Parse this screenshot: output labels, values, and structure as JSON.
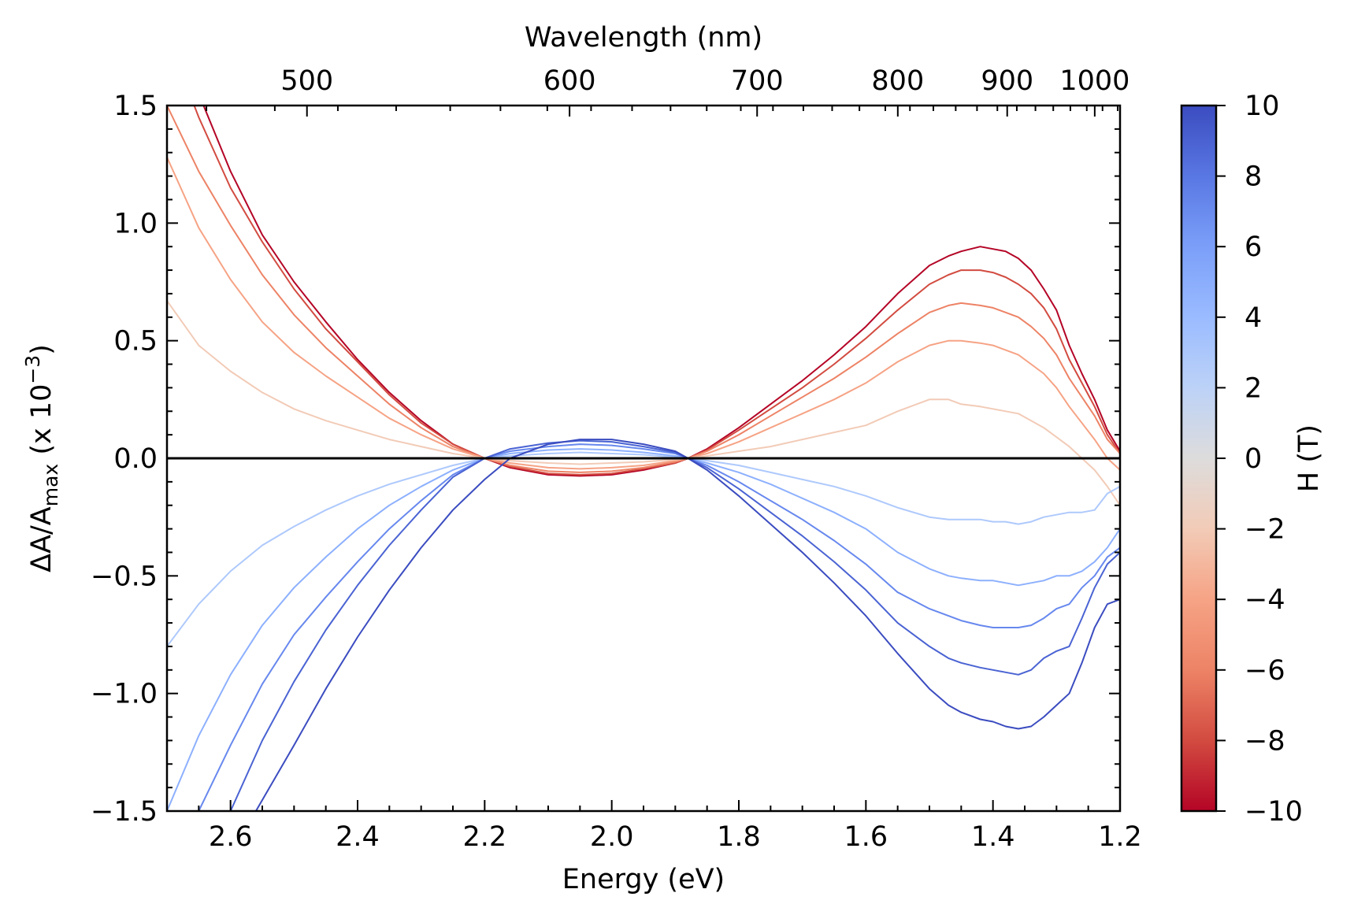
{
  "chart_data": {
    "type": "line",
    "xlabel": "Energy (eV)",
    "ylabel": {
      "base": "ΔA/A",
      "sub": "max",
      "suffix": " (x 10",
      "sup": "−3",
      "close": ")"
    },
    "top_xlabel": "Wavelength (nm)",
    "xlim": [
      2.7,
      1.2
    ],
    "ylim": [
      -1.5,
      1.5
    ],
    "x_ticks": [
      "2.6",
      "2.4",
      "2.2",
      "2.0",
      "1.8",
      "1.6",
      "1.4",
      "1.2"
    ],
    "y_ticks": [
      "−1.5",
      "−1.0",
      "−0.5",
      "0.0",
      "0.5",
      "1.0",
      "1.5"
    ],
    "top_ticks": [
      "500",
      "600",
      "700",
      "800",
      "900",
      "1000"
    ],
    "top_tick_values_nm": [
      500,
      600,
      700,
      800,
      900,
      1000
    ],
    "colorbar": {
      "label": "H (T)",
      "range": [
        -10,
        10
      ],
      "ticks": [
        "−10",
        "−8",
        "−6",
        "−4",
        "−2",
        "0",
        "2",
        "4",
        "6",
        "8",
        "10"
      ],
      "colormap": "coolwarm"
    },
    "zero_line": true,
    "series": [
      {
        "field": -10,
        "color": "#b40426",
        "x": [
          2.7,
          2.65,
          2.6,
          2.55,
          2.5,
          2.45,
          2.4,
          2.35,
          2.3,
          2.25,
          2.2,
          2.16,
          2.1,
          2.05,
          2.0,
          1.95,
          1.9,
          1.88,
          1.85,
          1.8,
          1.75,
          1.7,
          1.65,
          1.6,
          1.55,
          1.5,
          1.47,
          1.45,
          1.42,
          1.4,
          1.38,
          1.36,
          1.34,
          1.32,
          1.3,
          1.28,
          1.26,
          1.24,
          1.22,
          1.2
        ],
        "y": [
          1.9,
          1.55,
          1.22,
          0.95,
          0.75,
          0.58,
          0.42,
          0.28,
          0.16,
          0.06,
          0.0,
          -0.04,
          -0.07,
          -0.075,
          -0.07,
          -0.05,
          -0.02,
          0.0,
          0.04,
          0.13,
          0.23,
          0.33,
          0.44,
          0.56,
          0.7,
          0.82,
          0.86,
          0.88,
          0.9,
          0.89,
          0.88,
          0.85,
          0.8,
          0.72,
          0.63,
          0.48,
          0.36,
          0.25,
          0.12,
          0.03
        ]
      },
      {
        "field": -8,
        "color": "#d24b40",
        "x": [
          2.7,
          2.65,
          2.6,
          2.55,
          2.5,
          2.45,
          2.4,
          2.35,
          2.3,
          2.25,
          2.2,
          2.16,
          2.1,
          2.05,
          2.0,
          1.95,
          1.9,
          1.88,
          1.85,
          1.8,
          1.75,
          1.7,
          1.65,
          1.6,
          1.55,
          1.5,
          1.47,
          1.45,
          1.42,
          1.4,
          1.38,
          1.36,
          1.34,
          1.32,
          1.3,
          1.28,
          1.26,
          1.24,
          1.22,
          1.2
        ],
        "y": [
          1.8,
          1.45,
          1.15,
          0.92,
          0.72,
          0.55,
          0.41,
          0.27,
          0.15,
          0.06,
          0.0,
          -0.035,
          -0.065,
          -0.07,
          -0.065,
          -0.045,
          -0.02,
          0.0,
          0.035,
          0.12,
          0.21,
          0.3,
          0.4,
          0.51,
          0.63,
          0.74,
          0.78,
          0.8,
          0.8,
          0.79,
          0.77,
          0.74,
          0.7,
          0.64,
          0.55,
          0.42,
          0.32,
          0.22,
          0.1,
          0.02
        ]
      },
      {
        "field": -6,
        "color": "#ed8366",
        "x": [
          2.7,
          2.65,
          2.6,
          2.55,
          2.5,
          2.45,
          2.4,
          2.35,
          2.3,
          2.25,
          2.2,
          2.16,
          2.1,
          2.05,
          2.0,
          1.95,
          1.9,
          1.88,
          1.85,
          1.8,
          1.75,
          1.7,
          1.65,
          1.6,
          1.55,
          1.5,
          1.47,
          1.45,
          1.42,
          1.4,
          1.38,
          1.36,
          1.34,
          1.32,
          1.3,
          1.28,
          1.26,
          1.24,
          1.22,
          1.2
        ],
        "y": [
          1.5,
          1.22,
          0.99,
          0.78,
          0.61,
          0.47,
          0.35,
          0.23,
          0.13,
          0.05,
          0.0,
          -0.03,
          -0.055,
          -0.06,
          -0.055,
          -0.04,
          -0.015,
          0.0,
          0.03,
          0.1,
          0.18,
          0.26,
          0.34,
          0.43,
          0.53,
          0.62,
          0.65,
          0.66,
          0.65,
          0.64,
          0.62,
          0.6,
          0.56,
          0.51,
          0.44,
          0.34,
          0.26,
          0.18,
          0.08,
          0.02
        ]
      },
      {
        "field": -4,
        "color": "#f6a385",
        "x": [
          2.7,
          2.65,
          2.6,
          2.55,
          2.5,
          2.45,
          2.4,
          2.35,
          2.3,
          2.25,
          2.2,
          2.16,
          2.1,
          2.05,
          2.0,
          1.95,
          1.9,
          1.88,
          1.85,
          1.8,
          1.75,
          1.7,
          1.65,
          1.6,
          1.55,
          1.5,
          1.47,
          1.45,
          1.42,
          1.4,
          1.38,
          1.36,
          1.34,
          1.32,
          1.3,
          1.28,
          1.26,
          1.24,
          1.22,
          1.2
        ],
        "y": [
          1.28,
          0.98,
          0.76,
          0.58,
          0.45,
          0.35,
          0.26,
          0.17,
          0.1,
          0.04,
          0.0,
          -0.02,
          -0.04,
          -0.045,
          -0.04,
          -0.03,
          -0.01,
          0.0,
          0.02,
          0.07,
          0.13,
          0.19,
          0.25,
          0.32,
          0.41,
          0.48,
          0.5,
          0.5,
          0.49,
          0.48,
          0.46,
          0.44,
          0.4,
          0.36,
          0.3,
          0.22,
          0.15,
          0.08,
          0.0,
          -0.05
        ]
      },
      {
        "field": -2,
        "color": "#f2cbb7",
        "x": [
          2.7,
          2.65,
          2.6,
          2.55,
          2.5,
          2.45,
          2.4,
          2.35,
          2.3,
          2.25,
          2.2,
          2.16,
          2.1,
          2.05,
          2.0,
          1.95,
          1.9,
          1.88,
          1.85,
          1.8,
          1.75,
          1.7,
          1.65,
          1.6,
          1.55,
          1.5,
          1.47,
          1.45,
          1.42,
          1.4,
          1.38,
          1.36,
          1.34,
          1.32,
          1.3,
          1.28,
          1.26,
          1.24,
          1.22,
          1.2
        ],
        "y": [
          0.67,
          0.48,
          0.37,
          0.28,
          0.21,
          0.16,
          0.12,
          0.08,
          0.05,
          0.02,
          0.0,
          -0.01,
          -0.02,
          -0.025,
          -0.02,
          -0.015,
          -0.005,
          0.0,
          0.01,
          0.03,
          0.05,
          0.08,
          0.11,
          0.14,
          0.2,
          0.25,
          0.25,
          0.23,
          0.22,
          0.21,
          0.2,
          0.19,
          0.16,
          0.13,
          0.09,
          0.05,
          0.0,
          -0.05,
          -0.12,
          -0.2
        ]
      },
      {
        "field": 2,
        "color": "#aec9fc",
        "x": [
          2.7,
          2.65,
          2.6,
          2.55,
          2.5,
          2.45,
          2.4,
          2.35,
          2.3,
          2.25,
          2.2,
          2.16,
          2.1,
          2.05,
          2.0,
          1.95,
          1.9,
          1.88,
          1.85,
          1.8,
          1.75,
          1.7,
          1.65,
          1.6,
          1.55,
          1.5,
          1.47,
          1.45,
          1.42,
          1.4,
          1.38,
          1.36,
          1.34,
          1.32,
          1.3,
          1.28,
          1.26,
          1.24,
          1.22,
          1.2
        ],
        "y": [
          -0.8,
          -0.62,
          -0.48,
          -0.37,
          -0.29,
          -0.22,
          -0.16,
          -0.11,
          -0.07,
          -0.03,
          0.0,
          0.01,
          0.02,
          0.025,
          0.02,
          0.015,
          0.005,
          0.0,
          -0.01,
          -0.03,
          -0.06,
          -0.09,
          -0.12,
          -0.16,
          -0.21,
          -0.25,
          -0.26,
          -0.26,
          -0.26,
          -0.27,
          -0.27,
          -0.28,
          -0.27,
          -0.25,
          -0.24,
          -0.23,
          -0.23,
          -0.22,
          -0.15,
          -0.12
        ]
      },
      {
        "field": 4,
        "color": "#8db0fe",
        "x": [
          2.7,
          2.65,
          2.6,
          2.55,
          2.5,
          2.45,
          2.4,
          2.35,
          2.3,
          2.25,
          2.2,
          2.16,
          2.1,
          2.05,
          2.0,
          1.95,
          1.9,
          1.88,
          1.85,
          1.8,
          1.75,
          1.7,
          1.65,
          1.6,
          1.55,
          1.5,
          1.47,
          1.45,
          1.42,
          1.4,
          1.38,
          1.36,
          1.34,
          1.32,
          1.3,
          1.28,
          1.26,
          1.24,
          1.22,
          1.2
        ],
        "y": [
          -1.5,
          -1.18,
          -0.92,
          -0.71,
          -0.55,
          -0.42,
          -0.3,
          -0.2,
          -0.12,
          -0.05,
          0.0,
          0.02,
          0.035,
          0.04,
          0.035,
          0.025,
          0.01,
          0.0,
          -0.02,
          -0.06,
          -0.11,
          -0.17,
          -0.23,
          -0.3,
          -0.4,
          -0.47,
          -0.5,
          -0.51,
          -0.52,
          -0.52,
          -0.53,
          -0.54,
          -0.53,
          -0.52,
          -0.5,
          -0.5,
          -0.48,
          -0.44,
          -0.38,
          -0.3
        ]
      },
      {
        "field": 6,
        "color": "#6788ee",
        "x": [
          2.65,
          2.6,
          2.55,
          2.5,
          2.45,
          2.4,
          2.35,
          2.3,
          2.25,
          2.2,
          2.16,
          2.1,
          2.05,
          2.0,
          1.95,
          1.9,
          1.88,
          1.85,
          1.8,
          1.75,
          1.7,
          1.65,
          1.6,
          1.55,
          1.5,
          1.47,
          1.45,
          1.42,
          1.4,
          1.38,
          1.36,
          1.34,
          1.32,
          1.3,
          1.28,
          1.26,
          1.24,
          1.22,
          1.2
        ],
        "y": [
          -1.5,
          -1.22,
          -0.96,
          -0.75,
          -0.59,
          -0.44,
          -0.3,
          -0.18,
          -0.07,
          0.0,
          0.03,
          0.05,
          0.06,
          0.055,
          0.04,
          0.02,
          0.0,
          -0.03,
          -0.1,
          -0.18,
          -0.26,
          -0.35,
          -0.45,
          -0.57,
          -0.64,
          -0.67,
          -0.69,
          -0.71,
          -0.72,
          -0.72,
          -0.72,
          -0.71,
          -0.68,
          -0.64,
          -0.62,
          -0.55,
          -0.5,
          -0.42,
          -0.38
        ]
      },
      {
        "field": 8,
        "color": "#4a63d3",
        "x": [
          2.6,
          2.55,
          2.5,
          2.45,
          2.4,
          2.35,
          2.3,
          2.25,
          2.2,
          2.16,
          2.1,
          2.05,
          2.0,
          1.95,
          1.9,
          1.88,
          1.85,
          1.8,
          1.75,
          1.7,
          1.65,
          1.6,
          1.55,
          1.5,
          1.47,
          1.45,
          1.42,
          1.4,
          1.38,
          1.36,
          1.34,
          1.32,
          1.3,
          1.28,
          1.26,
          1.24,
          1.22,
          1.2
        ],
        "y": [
          -1.5,
          -1.2,
          -0.95,
          -0.73,
          -0.54,
          -0.37,
          -0.22,
          -0.08,
          0.0,
          0.04,
          0.065,
          0.075,
          0.07,
          0.05,
          0.025,
          0.0,
          -0.04,
          -0.13,
          -0.23,
          -0.33,
          -0.44,
          -0.56,
          -0.7,
          -0.8,
          -0.85,
          -0.87,
          -0.89,
          -0.9,
          -0.91,
          -0.92,
          -0.9,
          -0.85,
          -0.82,
          -0.8,
          -0.68,
          -0.55,
          -0.45,
          -0.4
        ]
      },
      {
        "field": 10,
        "color": "#3b4cc0",
        "x": [
          2.56,
          2.5,
          2.45,
          2.4,
          2.35,
          2.3,
          2.25,
          2.2,
          2.16,
          2.1,
          2.05,
          2.0,
          1.95,
          1.9,
          1.88,
          1.85,
          1.8,
          1.75,
          1.7,
          1.65,
          1.6,
          1.55,
          1.5,
          1.47,
          1.45,
          1.42,
          1.4,
          1.38,
          1.36,
          1.34,
          1.32,
          1.3,
          1.28,
          1.26,
          1.24,
          1.22,
          1.2
        ],
        "y": [
          -1.5,
          -1.22,
          -0.98,
          -0.76,
          -0.56,
          -0.38,
          -0.22,
          -0.09,
          0.0,
          0.06,
          0.08,
          0.08,
          0.06,
          0.03,
          0.0,
          -0.05,
          -0.16,
          -0.28,
          -0.4,
          -0.53,
          -0.67,
          -0.83,
          -0.98,
          -1.05,
          -1.08,
          -1.11,
          -1.12,
          -1.14,
          -1.15,
          -1.14,
          -1.1,
          -1.05,
          -1.0,
          -0.87,
          -0.72,
          -0.62,
          -0.6
        ]
      }
    ]
  }
}
